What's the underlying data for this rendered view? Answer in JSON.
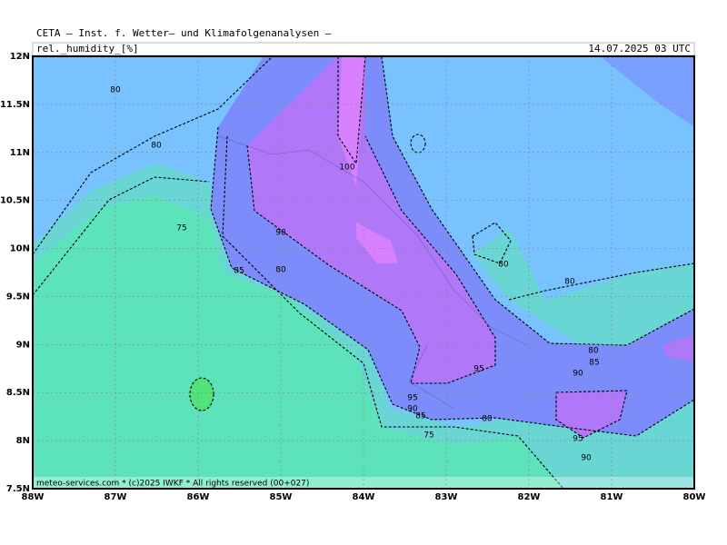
{
  "header": {
    "title": "CETA — Inst. f. Wetter— und Klimafolgenanalysen —",
    "variable": "rel._humidity_[%]",
    "valid_time": "14.07.2025 03 UTC"
  },
  "map": {
    "lat_labels": [
      "12N",
      "11.5N",
      "11N",
      "10.5N",
      "10N",
      "9.5N",
      "9N",
      "8.5N",
      "8N",
      "7.5N"
    ],
    "lon_labels": [
      "88W",
      "87W",
      "86W",
      "85W",
      "84W",
      "83W",
      "82W",
      "81W",
      "80W"
    ],
    "contour_labels": [
      "80",
      "80",
      "75",
      "90",
      "85",
      "80",
      "100",
      "80",
      "80",
      "80",
      "85",
      "90",
      "95",
      "95",
      "90",
      "85",
      "80",
      "75",
      "95",
      "90"
    ]
  },
  "footer": "meteo-services.com * (c)2025 IWKF * All rights reserved (00+027)"
}
